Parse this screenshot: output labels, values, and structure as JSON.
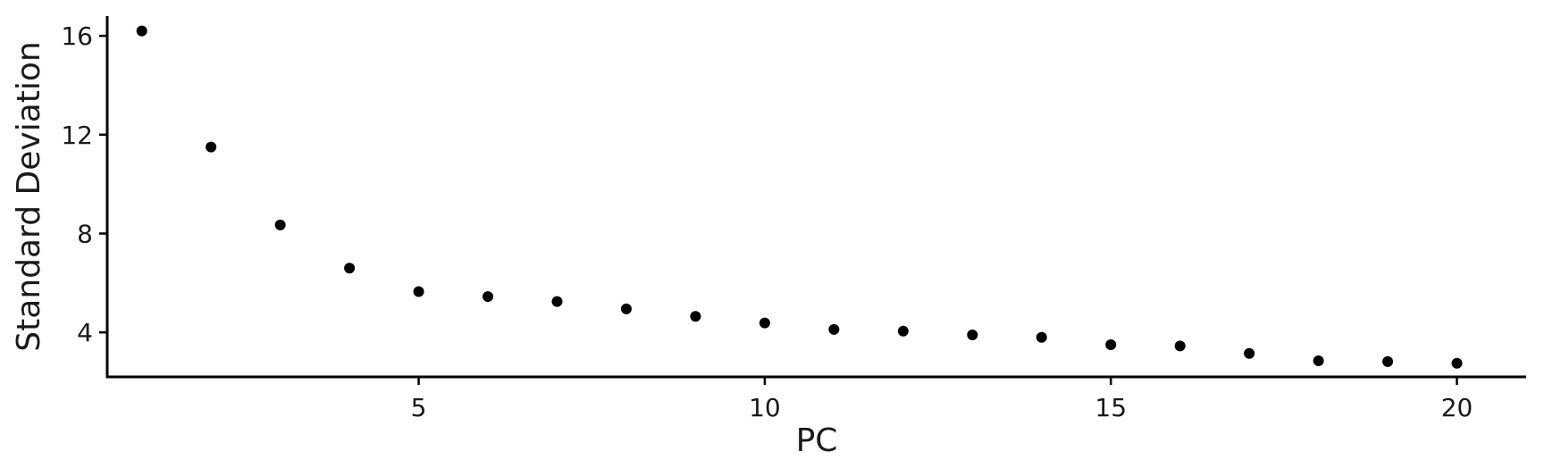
{
  "chart_data": {
    "type": "scatter",
    "title": "",
    "xlabel": "PC",
    "ylabel": "Standard Deviation",
    "xlim": [
      0.5,
      21
    ],
    "ylim": [
      2.2,
      16.8
    ],
    "xticks": [
      5,
      10,
      15,
      20
    ],
    "yticks": [
      4,
      8,
      12,
      16
    ],
    "grid": false,
    "point_color": "#000000",
    "x": [
      1,
      2,
      3,
      4,
      5,
      6,
      7,
      8,
      9,
      10,
      11,
      12,
      13,
      14,
      15,
      16,
      17,
      18,
      19,
      20
    ],
    "y": [
      16.2,
      11.5,
      8.35,
      6.6,
      5.65,
      5.45,
      5.25,
      4.95,
      4.65,
      4.38,
      4.12,
      4.05,
      3.9,
      3.8,
      3.5,
      3.45,
      3.15,
      2.85,
      2.82,
      2.75
    ]
  }
}
